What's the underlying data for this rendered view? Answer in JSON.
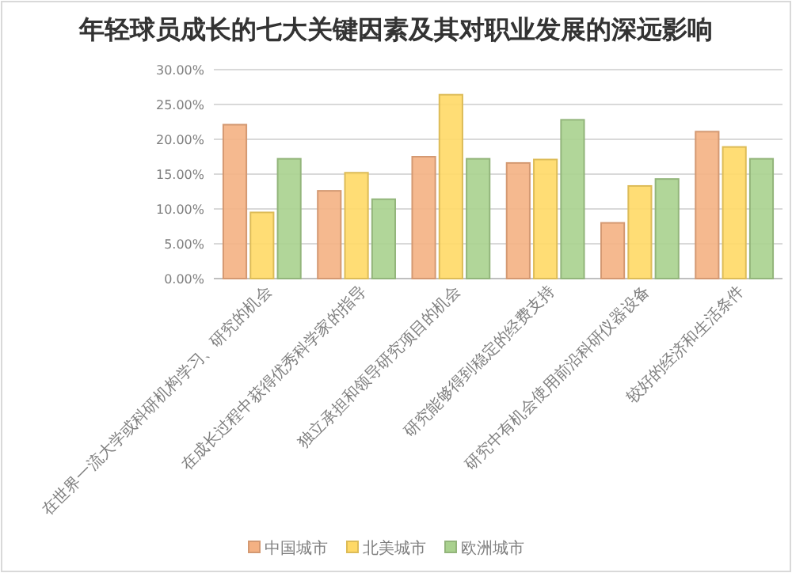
{
  "chart_data": {
    "type": "bar",
    "title": "年轻球员成长的七大关键因素及其对职业发展的深远影响",
    "categories": [
      "在世界一流大学或科研机构学习、研究的机会",
      "在成长过程中获得优秀科学家的指导",
      "独立承担和领导研究项目的机会",
      "研究能够得到稳定的经费支持",
      "研究中有机会使用前沿科研仪器设备",
      "较好的经济和生活条件"
    ],
    "series": [
      {
        "name": "中国城市",
        "color": "#f4b183",
        "values": [
          22.1,
          12.6,
          17.5,
          16.6,
          8.0,
          21.1
        ]
      },
      {
        "name": "北美城市",
        "color": "#ffd966",
        "values": [
          9.5,
          15.2,
          26.4,
          17.1,
          13.3,
          18.9
        ]
      },
      {
        "name": "欧洲城市",
        "color": "#a9d18e",
        "values": [
          17.2,
          11.4,
          17.2,
          22.8,
          14.3,
          17.2
        ]
      }
    ],
    "ylim": [
      0,
      30
    ],
    "yticks": [
      {
        "value": 0,
        "label": "0.00%"
      },
      {
        "value": 5,
        "label": "5.00%"
      },
      {
        "value": 10,
        "label": "10.00%"
      },
      {
        "value": 15,
        "label": "15.00%"
      },
      {
        "value": 20,
        "label": "20.00%"
      },
      {
        "value": 25,
        "label": "25.00%"
      },
      {
        "value": 30,
        "label": "30.00%"
      }
    ],
    "grid": "y",
    "legend": "bottom"
  }
}
